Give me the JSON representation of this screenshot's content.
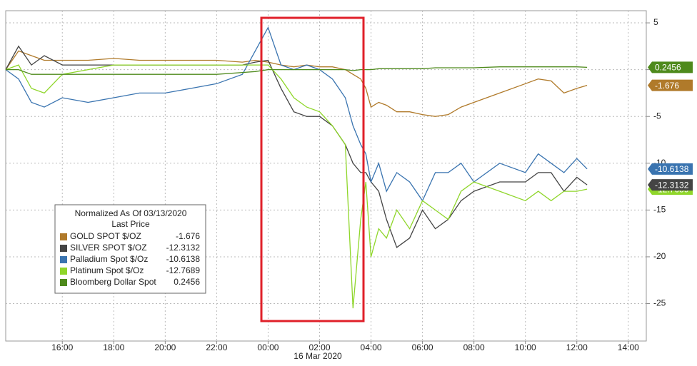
{
  "chart_data": {
    "type": "line",
    "legend_title": "Normalized As Of 03/13/2020",
    "legend_subtitle": "Last Price",
    "x_sublabel": "16 Mar 2020",
    "x": [
      13.8,
      14.3,
      14.8,
      15.3,
      16,
      17,
      18,
      19,
      20,
      21,
      22,
      23,
      23.5,
      24,
      24.5,
      25,
      25.5,
      26,
      26.5,
      27,
      27.3,
      27.6,
      27.8,
      28,
      28.3,
      28.6,
      29,
      29.5,
      30,
      30.5,
      31,
      31.5,
      32,
      33,
      34,
      34.5,
      35,
      35.5,
      36,
      36.4
    ],
    "series": [
      {
        "name": "GOLD SPOT $/OZ",
        "color": "#b07a2a",
        "values": [
          0,
          2,
          1.5,
          1,
          1,
          1,
          1.2,
          1,
          1,
          1,
          1,
          0.8,
          1,
          0.8,
          0.5,
          0.3,
          0.5,
          0.3,
          0.3,
          0,
          -0.5,
          -1,
          -2,
          -4,
          -3.5,
          -3.8,
          -4.5,
          -4.5,
          -4.8,
          -5,
          -4.8,
          -4,
          -3.5,
          -2.5,
          -1.5,
          -1,
          -1.2,
          -2.5,
          -2,
          -1.676
        ]
      },
      {
        "name": "SILVER SPOT $/OZ",
        "color": "#444444",
        "values": [
          0,
          2.5,
          0.5,
          1.5,
          0.5,
          0.5,
          0.5,
          0.5,
          0.5,
          0.5,
          0.5,
          0.5,
          0.8,
          1,
          -2,
          -4.5,
          -5,
          -5,
          -6,
          -8,
          -10,
          -11,
          -11,
          -12,
          -13,
          -16,
          -19,
          -18,
          -15,
          -17,
          -16,
          -14,
          -13,
          -12,
          -12,
          -11,
          -11,
          -13,
          -11.5,
          -12.3132
        ]
      },
      {
        "name": "Palladium Spot $/Oz",
        "color": "#3a74b0",
        "values": [
          0,
          -1,
          -3.5,
          -4,
          -3,
          -3.5,
          -3,
          -2.5,
          -2.5,
          -2,
          -1.5,
          -0.5,
          2,
          4.5,
          0.5,
          0,
          0.5,
          0,
          -1,
          -3,
          -6,
          -8,
          -9,
          -12,
          -10,
          -13,
          -11,
          -12,
          -14,
          -11,
          -11,
          -10,
          -12,
          -10,
          -11,
          -9,
          -10,
          -11,
          -9.5,
          -10.6138
        ]
      },
      {
        "name": "Platinum Spot $/Oz",
        "color": "#8fd62a",
        "values": [
          0,
          0.5,
          -2,
          -2.5,
          -0.5,
          0,
          0.5,
          0.5,
          0.5,
          0.5,
          0.5,
          0.5,
          0.5,
          0.5,
          -1,
          -3,
          -4,
          -4.5,
          -6,
          -8,
          -25.5,
          -16,
          -12,
          -20,
          -17,
          -18,
          -15,
          -17,
          -14,
          -15,
          -16,
          -13,
          -12,
          -13,
          -14,
          -13,
          -14,
          -13,
          -13,
          -12.7689
        ]
      },
      {
        "name": "Bloomberg Dollar Spot",
        "color": "#4e8a1c",
        "values": [
          0,
          0,
          -0.5,
          -0.5,
          -0.5,
          -0.5,
          -0.5,
          -0.5,
          -0.5,
          -0.5,
          -0.5,
          -0.3,
          -0.2,
          0,
          0,
          0,
          0,
          0,
          0,
          0,
          -0.1,
          0,
          0,
          0,
          0.1,
          0.1,
          0.1,
          0.1,
          0.1,
          0.2,
          0.2,
          0.2,
          0.2,
          0.3,
          0.3,
          0.3,
          0.3,
          0.3,
          0.3,
          0.2456
        ]
      }
    ],
    "xlim": [
      13.8,
      38.7
    ],
    "xticks": [
      {
        "value": 16,
        "label": "16:00"
      },
      {
        "value": 18,
        "label": "18:00"
      },
      {
        "value": 20,
        "label": "20:00"
      },
      {
        "value": 22,
        "label": "22:00"
      },
      {
        "value": 24,
        "label": "00:00"
      },
      {
        "value": 26,
        "label": "02:00"
      },
      {
        "value": 28,
        "label": "04:00"
      },
      {
        "value": 30,
        "label": "06:00"
      },
      {
        "value": 32,
        "label": "08:00"
      },
      {
        "value": 34,
        "label": "10:00"
      },
      {
        "value": 36,
        "label": "12:00"
      },
      {
        "value": 38,
        "label": "14:00"
      }
    ],
    "ylim": [
      -29,
      6.3
    ],
    "yticks": [
      5,
      0,
      -5,
      -10,
      -15,
      -20,
      -25
    ],
    "grid": true
  }
}
